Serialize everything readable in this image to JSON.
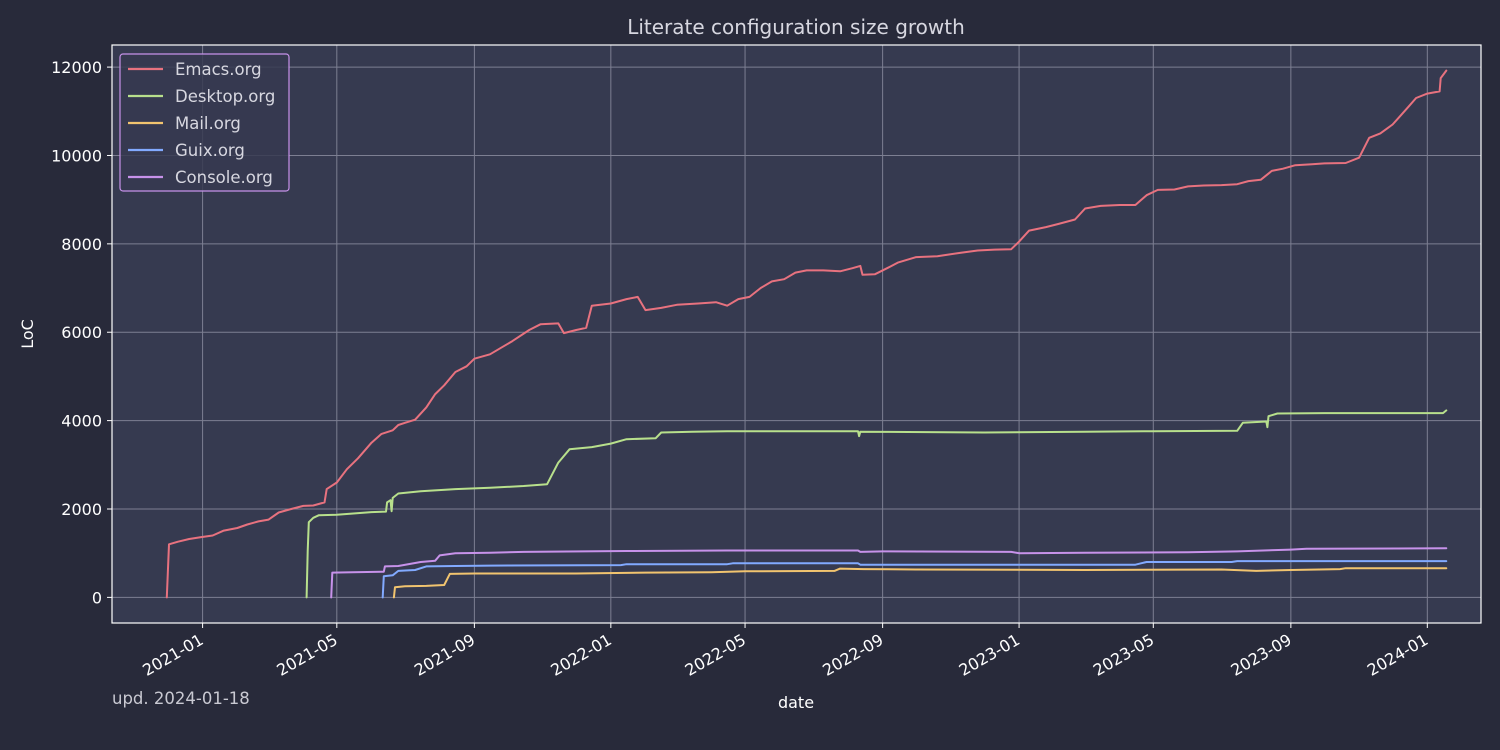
{
  "chart_data": {
    "type": "line",
    "title": "Literate configuration size growth",
    "xlabel": "date",
    "ylabel": "LoC",
    "xlim": [
      "2020-10-12",
      "2024-02-18"
    ],
    "ylim": [
      -580,
      12500
    ],
    "x_ticks": [
      "2021-01",
      "2021-05",
      "2021-09",
      "2022-01",
      "2022-05",
      "2022-09",
      "2023-01",
      "2023-05",
      "2023-09",
      "2024-01"
    ],
    "y_ticks": [
      0,
      2000,
      4000,
      6000,
      8000,
      10000,
      12000
    ],
    "grid": true,
    "legend_position": "top-left",
    "footer_text": "upd. 2024-01-18",
    "series": [
      {
        "name": "Emacs.org",
        "color": "#e8727f",
        "points": [
          [
            "2020-11-30",
            0
          ],
          [
            "2020-12-02",
            1200
          ],
          [
            "2020-12-10",
            1260
          ],
          [
            "2020-12-20",
            1320
          ],
          [
            "2020-12-30",
            1360
          ],
          [
            "2021-01-10",
            1400
          ],
          [
            "2021-01-20",
            1510
          ],
          [
            "2021-02-01",
            1570
          ],
          [
            "2021-02-10",
            1650
          ],
          [
            "2021-02-20",
            1720
          ],
          [
            "2021-03-01",
            1760
          ],
          [
            "2021-03-10",
            1920
          ],
          [
            "2021-03-20",
            1990
          ],
          [
            "2021-04-01",
            2070
          ],
          [
            "2021-04-10",
            2080
          ],
          [
            "2021-04-20",
            2150
          ],
          [
            "2021-04-22",
            2450
          ],
          [
            "2021-05-01",
            2600
          ],
          [
            "2021-05-10",
            2900
          ],
          [
            "2021-05-20",
            3150
          ],
          [
            "2021-06-01",
            3500
          ],
          [
            "2021-06-10",
            3700
          ],
          [
            "2021-06-20",
            3780
          ],
          [
            "2021-06-25",
            3900
          ],
          [
            "2021-07-01",
            3950
          ],
          [
            "2021-07-10",
            4020
          ],
          [
            "2021-07-20",
            4300
          ],
          [
            "2021-07-28",
            4600
          ],
          [
            "2021-08-05",
            4800
          ],
          [
            "2021-08-15",
            5100
          ],
          [
            "2021-08-25",
            5230
          ],
          [
            "2021-09-01",
            5400
          ],
          [
            "2021-09-15",
            5500
          ],
          [
            "2021-09-25",
            5650
          ],
          [
            "2021-10-05",
            5800
          ],
          [
            "2021-10-20",
            6050
          ],
          [
            "2021-10-30",
            6180
          ],
          [
            "2021-11-15",
            6200
          ],
          [
            "2021-11-20",
            5980
          ],
          [
            "2021-12-01",
            6050
          ],
          [
            "2021-12-10",
            6100
          ],
          [
            "2021-12-15",
            6600
          ],
          [
            "2022-01-01",
            6650
          ],
          [
            "2022-01-15",
            6750
          ],
          [
            "2022-01-25",
            6800
          ],
          [
            "2022-02-01",
            6500
          ],
          [
            "2022-02-15",
            6550
          ],
          [
            "2022-03-01",
            6620
          ],
          [
            "2022-03-20",
            6650
          ],
          [
            "2022-04-05",
            6680
          ],
          [
            "2022-04-15",
            6600
          ],
          [
            "2022-04-25",
            6750
          ],
          [
            "2022-05-05",
            6800
          ],
          [
            "2022-05-15",
            7000
          ],
          [
            "2022-05-25",
            7150
          ],
          [
            "2022-06-05",
            7200
          ],
          [
            "2022-06-15",
            7350
          ],
          [
            "2022-06-25",
            7400
          ],
          [
            "2022-07-10",
            7400
          ],
          [
            "2022-07-25",
            7380
          ],
          [
            "2022-08-05",
            7450
          ],
          [
            "2022-08-12",
            7500
          ],
          [
            "2022-08-14",
            7300
          ],
          [
            "2022-08-25",
            7310
          ],
          [
            "2022-09-05",
            7450
          ],
          [
            "2022-09-15",
            7580
          ],
          [
            "2022-10-01",
            7700
          ],
          [
            "2022-10-20",
            7720
          ],
          [
            "2022-11-10",
            7800
          ],
          [
            "2022-11-25",
            7850
          ],
          [
            "2022-12-10",
            7870
          ],
          [
            "2022-12-25",
            7880
          ],
          [
            "2023-01-01",
            8050
          ],
          [
            "2023-01-10",
            8300
          ],
          [
            "2023-01-25",
            8380
          ],
          [
            "2023-02-05",
            8450
          ],
          [
            "2023-02-20",
            8550
          ],
          [
            "2023-03-01",
            8800
          ],
          [
            "2023-03-15",
            8860
          ],
          [
            "2023-04-01",
            8880
          ],
          [
            "2023-04-15",
            8880
          ],
          [
            "2023-04-25",
            9100
          ],
          [
            "2023-05-05",
            9220
          ],
          [
            "2023-05-20",
            9230
          ],
          [
            "2023-06-01",
            9300
          ],
          [
            "2023-06-15",
            9320
          ],
          [
            "2023-07-01",
            9330
          ],
          [
            "2023-07-15",
            9350
          ],
          [
            "2023-07-25",
            9420
          ],
          [
            "2023-08-05",
            9450
          ],
          [
            "2023-08-15",
            9650
          ],
          [
            "2023-08-25",
            9700
          ],
          [
            "2023-09-05",
            9780
          ],
          [
            "2023-09-20",
            9800
          ],
          [
            "2023-10-01",
            9820
          ],
          [
            "2023-10-20",
            9830
          ],
          [
            "2023-11-01",
            9950
          ],
          [
            "2023-11-10",
            10400
          ],
          [
            "2023-11-20",
            10500
          ],
          [
            "2023-12-01",
            10700
          ],
          [
            "2023-12-15",
            11100
          ],
          [
            "2023-12-22",
            11300
          ],
          [
            "2024-01-01",
            11400
          ],
          [
            "2024-01-12",
            11450
          ],
          [
            "2024-01-13",
            11750
          ],
          [
            "2024-01-18",
            11920
          ]
        ]
      },
      {
        "name": "Desktop.org",
        "color": "#b8e08c",
        "points": [
          [
            "2021-04-04",
            0
          ],
          [
            "2021-04-05",
            1050
          ],
          [
            "2021-04-06",
            1700
          ],
          [
            "2021-04-10",
            1800
          ],
          [
            "2021-04-15",
            1860
          ],
          [
            "2021-05-01",
            1870
          ],
          [
            "2021-06-01",
            1930
          ],
          [
            "2021-06-14",
            1940
          ],
          [
            "2021-06-15",
            2150
          ],
          [
            "2021-06-18",
            2200
          ],
          [
            "2021-06-19",
            1950
          ],
          [
            "2021-06-20",
            2250
          ],
          [
            "2021-06-25",
            2350
          ],
          [
            "2021-07-15",
            2400
          ],
          [
            "2021-08-15",
            2450
          ],
          [
            "2021-09-15",
            2480
          ],
          [
            "2021-10-15",
            2520
          ],
          [
            "2021-11-05",
            2560
          ],
          [
            "2021-11-15",
            3050
          ],
          [
            "2021-11-25",
            3350
          ],
          [
            "2021-12-15",
            3400
          ],
          [
            "2022-01-01",
            3480
          ],
          [
            "2022-01-15",
            3580
          ],
          [
            "2022-02-10",
            3600
          ],
          [
            "2022-02-15",
            3730
          ],
          [
            "2022-03-15",
            3750
          ],
          [
            "2022-04-15",
            3760
          ],
          [
            "2022-06-01",
            3760
          ],
          [
            "2022-08-10",
            3760
          ],
          [
            "2022-08-11",
            3650
          ],
          [
            "2022-08-12",
            3750
          ],
          [
            "2022-12-01",
            3730
          ],
          [
            "2023-03-01",
            3750
          ],
          [
            "2023-05-01",
            3760
          ],
          [
            "2023-07-15",
            3770
          ],
          [
            "2023-07-20",
            3950
          ],
          [
            "2023-08-10",
            3980
          ],
          [
            "2023-08-11",
            3850
          ],
          [
            "2023-08-12",
            4100
          ],
          [
            "2023-08-20",
            4160
          ],
          [
            "2023-10-01",
            4170
          ],
          [
            "2024-01-15",
            4170
          ],
          [
            "2024-01-18",
            4230
          ]
        ]
      },
      {
        "name": "Mail.org",
        "color": "#f2c46f",
        "points": [
          [
            "2021-06-21",
            0
          ],
          [
            "2021-06-22",
            230
          ],
          [
            "2021-07-01",
            250
          ],
          [
            "2021-07-20",
            260
          ],
          [
            "2021-08-05",
            280
          ],
          [
            "2021-08-10",
            530
          ],
          [
            "2021-09-01",
            540
          ],
          [
            "2021-12-01",
            540
          ],
          [
            "2022-02-01",
            560
          ],
          [
            "2022-04-01",
            570
          ],
          [
            "2022-05-01",
            590
          ],
          [
            "2022-07-20",
            600
          ],
          [
            "2022-07-25",
            650
          ],
          [
            "2022-08-15",
            640
          ],
          [
            "2022-10-01",
            630
          ],
          [
            "2023-03-01",
            620
          ],
          [
            "2023-07-01",
            630
          ],
          [
            "2023-08-01",
            600
          ],
          [
            "2023-09-01",
            620
          ],
          [
            "2023-10-15",
            640
          ],
          [
            "2023-10-20",
            660
          ],
          [
            "2024-01-18",
            660
          ]
        ]
      },
      {
        "name": "Guix.org",
        "color": "#82aaff",
        "points": [
          [
            "2021-06-11",
            0
          ],
          [
            "2021-06-12",
            480
          ],
          [
            "2021-06-20",
            500
          ],
          [
            "2021-06-25",
            600
          ],
          [
            "2021-07-10",
            620
          ],
          [
            "2021-07-20",
            700
          ],
          [
            "2021-08-15",
            710
          ],
          [
            "2021-09-15",
            720
          ],
          [
            "2022-01-10",
            730
          ],
          [
            "2022-01-15",
            750
          ],
          [
            "2022-04-15",
            750
          ],
          [
            "2022-04-20",
            770
          ],
          [
            "2022-08-10",
            770
          ],
          [
            "2022-08-12",
            740
          ],
          [
            "2023-04-15",
            740
          ],
          [
            "2023-04-20",
            770
          ],
          [
            "2023-04-25",
            800
          ],
          [
            "2023-07-10",
            800
          ],
          [
            "2023-07-15",
            820
          ],
          [
            "2024-01-18",
            820
          ]
        ]
      },
      {
        "name": "Console.org",
        "color": "#c792ea",
        "points": [
          [
            "2021-04-26",
            0
          ],
          [
            "2021-04-27",
            560
          ],
          [
            "2021-05-15",
            570
          ],
          [
            "2021-06-12",
            580
          ],
          [
            "2021-06-13",
            700
          ],
          [
            "2021-06-25",
            710
          ],
          [
            "2021-07-15",
            800
          ],
          [
            "2021-07-28",
            830
          ],
          [
            "2021-08-01",
            950
          ],
          [
            "2021-08-15",
            1000
          ],
          [
            "2021-09-15",
            1010
          ],
          [
            "2021-10-15",
            1030
          ],
          [
            "2022-01-15",
            1050
          ],
          [
            "2022-04-15",
            1060
          ],
          [
            "2022-08-10",
            1060
          ],
          [
            "2022-08-12",
            1030
          ],
          [
            "2022-09-01",
            1040
          ],
          [
            "2022-12-25",
            1030
          ],
          [
            "2023-01-01",
            1000
          ],
          [
            "2023-03-01",
            1010
          ],
          [
            "2023-06-01",
            1020
          ],
          [
            "2023-07-15",
            1040
          ],
          [
            "2023-09-01",
            1080
          ],
          [
            "2023-09-15",
            1100
          ],
          [
            "2024-01-18",
            1110
          ]
        ]
      }
    ]
  },
  "colors": {
    "page_background": "#282a3a",
    "plot_background": "#363a50",
    "grid": "#7d7f92",
    "axes": "#ffffff",
    "legend_border": "#c792ea"
  }
}
